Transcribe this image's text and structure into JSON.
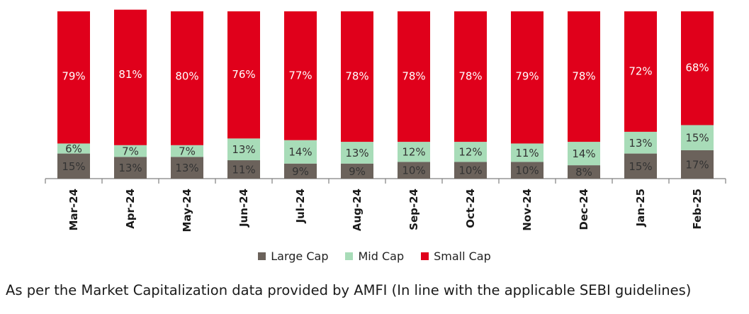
{
  "chart_data": {
    "type": "bar",
    "stacked": true,
    "categories": [
      "Mar-24",
      "Apr-24",
      "May-24",
      "Jun-24",
      "Jul-24",
      "Aug-24",
      "Sep-24",
      "Oct-24",
      "Nov-24",
      "Dec-24",
      "Jan-25",
      "Feb-25"
    ],
    "series": [
      {
        "name": "Large Cap",
        "color": "#6b625b",
        "values": [
          15,
          13,
          13,
          11,
          9,
          9,
          10,
          10,
          10,
          8,
          15,
          17
        ],
        "labels": [
          "15%",
          "13%",
          "13%",
          "11%",
          "9%",
          "9%",
          "10%",
          "10%",
          "10%",
          "8%",
          "15%",
          "17%"
        ]
      },
      {
        "name": "Mid Cap",
        "color": "#a8dcb8",
        "values": [
          6,
          7,
          7,
          13,
          14,
          13,
          12,
          12,
          11,
          14,
          13,
          15
        ],
        "labels": [
          "6%",
          "7%",
          "7%",
          "13%",
          "14%",
          "13%",
          "12%",
          "12%",
          "11%",
          "14%",
          "13%",
          "15%"
        ]
      },
      {
        "name": "Small Cap",
        "color": "#e0001b",
        "values": [
          79,
          81,
          80,
          76,
          77,
          78,
          78,
          78,
          79,
          78,
          72,
          68
        ],
        "labels": [
          "79%",
          "81%",
          "80%",
          "76%",
          "77%",
          "78%",
          "78%",
          "78%",
          "79%",
          "78%",
          "72%",
          "68%"
        ]
      }
    ],
    "ylim": [
      0,
      100
    ],
    "legend": "bottom",
    "grid": false,
    "title": "",
    "xlabel": "",
    "ylabel": ""
  },
  "footnote": "As per the Market Capitalization data provided by AMFI (In line with the applicable SEBI guidelines)"
}
